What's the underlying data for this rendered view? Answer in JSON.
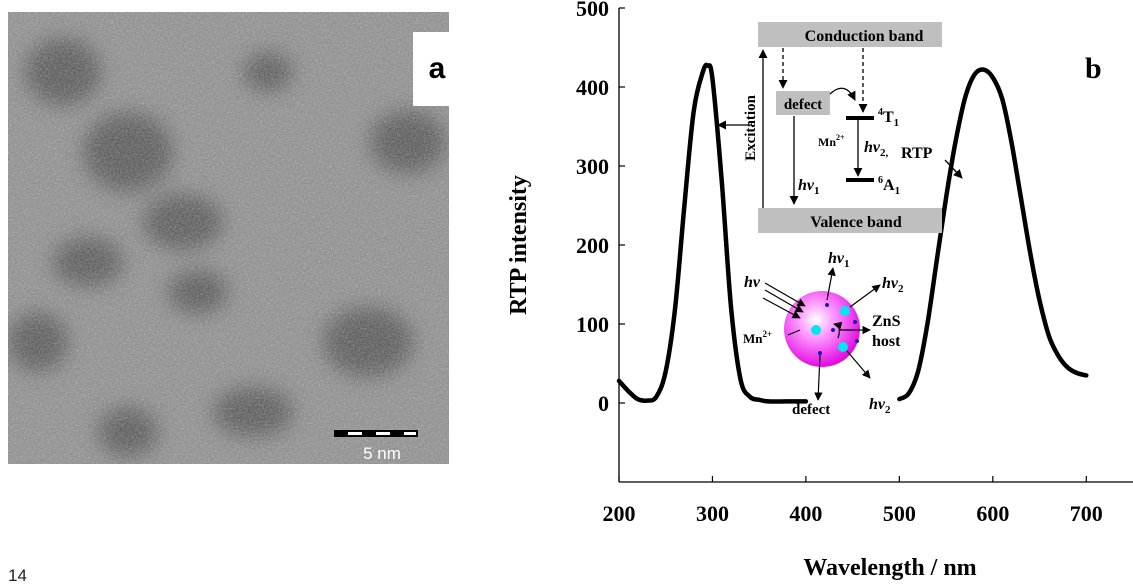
{
  "panel_a": {
    "label": "a",
    "scale_bar_label": "5 nm"
  },
  "page_number": "14",
  "chart_data": {
    "type": "line",
    "panel_label": "b",
    "xlabel": "Wavelength / nm",
    "ylabel": "RTP intensity",
    "xlim": [
      200,
      750
    ],
    "ylim": [
      -100,
      500
    ],
    "xticks": [
      "200",
      "300",
      "400",
      "500",
      "600",
      "700"
    ],
    "yticks": [
      "0",
      "100",
      "200",
      "300",
      "400",
      "500"
    ],
    "series": [
      {
        "name": "Excitation",
        "x": [
          200,
          210,
          220,
          230,
          240,
          250,
          260,
          270,
          280,
          290,
          295,
          300,
          310,
          320,
          330,
          340,
          350,
          360,
          380,
          400
        ],
        "y": [
          28,
          15,
          5,
          3,
          8,
          40,
          120,
          250,
          370,
          420,
          427,
          410,
          280,
          120,
          30,
          8,
          4,
          2,
          2,
          2
        ]
      },
      {
        "name": "RTP",
        "x": [
          500,
          510,
          520,
          530,
          540,
          550,
          560,
          570,
          580,
          590,
          600,
          610,
          620,
          630,
          640,
          650,
          660,
          670,
          680,
          690,
          700
        ],
        "y": [
          5,
          12,
          40,
          100,
          180,
          260,
          330,
          385,
          415,
          422,
          412,
          385,
          330,
          260,
          190,
          130,
          85,
          60,
          45,
          38,
          35
        ]
      }
    ],
    "energy_diagram": {
      "conduction_band": "Conduction band",
      "valence_band": "Valence band",
      "defect": "defect",
      "excitation": "Excitation",
      "upper_level": "4T1",
      "lower_level": "6A1",
      "mn_label": "Mn2+",
      "hv1": "hv1",
      "hv2": "hv2,",
      "rtp": "RTP"
    },
    "nanoparticle_diagram": {
      "hv": "hv",
      "hv1": "hv1",
      "hv2_top": "hv2",
      "hv2_bottom": "hv2",
      "mn_label": "Mn2+",
      "host_line1": "ZnS",
      "host_line2": "host",
      "defect": "defect"
    },
    "colors": {
      "band_box": "#bfbfbf",
      "sphere": "#e000e0",
      "ions": "#00e5ee",
      "dots": "#1a1aa8"
    }
  }
}
